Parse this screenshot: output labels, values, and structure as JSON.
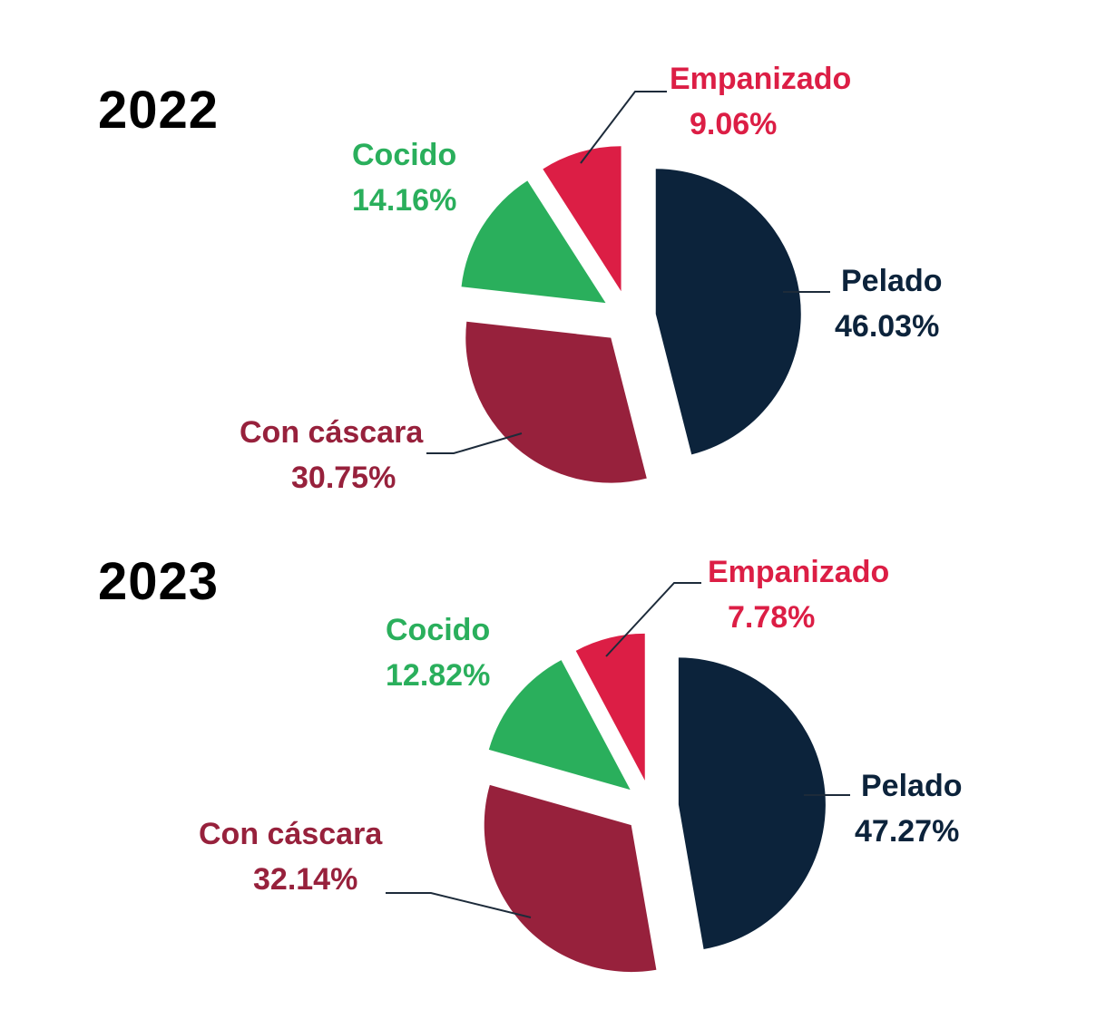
{
  "chart_data": [
    {
      "type": "pie",
      "title": "2022",
      "slices": [
        {
          "label": "Pelado",
          "value": 46.03,
          "value_label": "46.03%",
          "color": "#0c233b"
        },
        {
          "label": "Con cáscara",
          "value": 30.75,
          "value_label": "30.75%",
          "color": "#97213c"
        },
        {
          "label": "Cocido",
          "value": 14.16,
          "value_label": "14.16%",
          "color": "#2aaf5c"
        },
        {
          "label": "Empanizado",
          "value": 9.06,
          "value_label": "9.06%",
          "color": "#dc1e45"
        }
      ]
    },
    {
      "type": "pie",
      "title": "2023",
      "slices": [
        {
          "label": "Pelado",
          "value": 47.27,
          "value_label": "47.27%",
          "color": "#0c233b"
        },
        {
          "label": "Con cáscara",
          "value": 32.14,
          "value_label": "32.14%",
          "color": "#97213c"
        },
        {
          "label": "Cocido",
          "value": 12.82,
          "value_label": "12.82%",
          "color": "#2aaf5c"
        },
        {
          "label": "Empanizado",
          "value": 7.78,
          "value_label": "7.78%",
          "color": "#dc1e45"
        }
      ]
    }
  ]
}
